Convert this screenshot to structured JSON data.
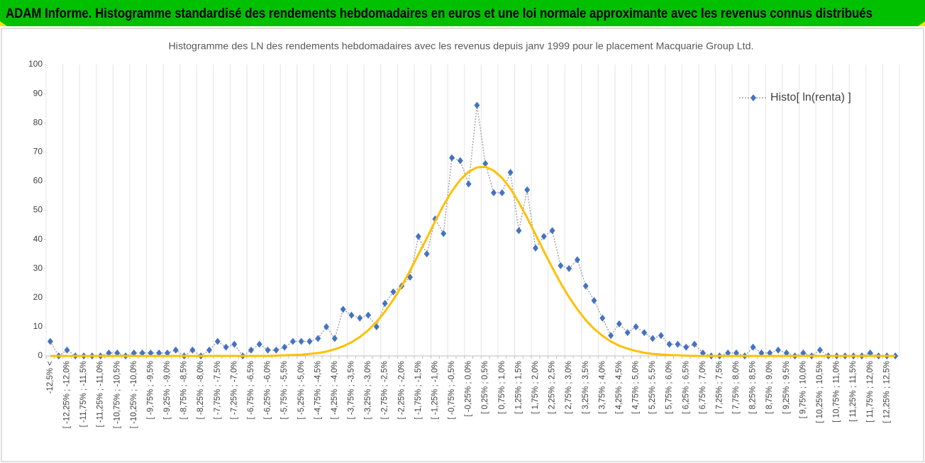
{
  "chart_data": {
    "type": "line",
    "header": "ADAM Informe. Histogramme standardisé des rendements hebdomadaires en euros et une loi normale approximante avec les revenus connus distribués",
    "title": "Histogramme des LN des rendements hebdomadaires avec les revenus depuis janv 1999 pour le placement Macquarie Group Ltd.",
    "categories": [
      "-12,5% <",
      null,
      "[ -12,25% ; -12,0%",
      null,
      "[ -11,75% ; -11,5%",
      null,
      "[ -11,25% ; -11,0%",
      null,
      "[ -10,75% ; -10,5%",
      null,
      "[ -10,25% ; -10,0%",
      null,
      "[ -9,75% ; -9,5%",
      null,
      "[ -9,25% ; -9,0%",
      null,
      "[ -8,75% ; -8,5%",
      null,
      "[ -8,25% ; -8,0%",
      null,
      "[ -7,75% ; -7,5%",
      null,
      "[ -7,25% ; -7,0%",
      null,
      "[ -6,75% ; -6,5%",
      null,
      "[ -6,25% ; -6,0%",
      null,
      "[ -5,75% ; -5,5%",
      null,
      "[ -5,25% ; -5,0%",
      null,
      "[ -4,75% ; -4,5%",
      null,
      "[ -4,25% ; -4,0%",
      null,
      "[ -3,75% ; -3,5%",
      null,
      "[ -3,25% ; -3,0%",
      null,
      "[ -2,75% ; -2,5%",
      null,
      "[ -2,25% ; -2,0%",
      null,
      "[ -1,75% ; -1,5%",
      null,
      "[ -1,25% ; -1,0%",
      null,
      "[ -0,75% ; -0,5%",
      null,
      "[ -0,25% ; 0,0%",
      null,
      "[ 0,25% ; 0,5%",
      null,
      "[ 0,75% ; 1,0%",
      null,
      "[ 1,25% ; 1,5%",
      null,
      "[ 1,75% ; 2,0%",
      null,
      "[ 2,25% ; 2,5%",
      null,
      "[ 2,75% ; 3,0%",
      null,
      "[ 3,25% ; 3,5%",
      null,
      "[ 3,75% ; 4,0%",
      null,
      "[ 4,25% ; 4,5%",
      null,
      "[ 4,75% ; 5,0%",
      null,
      "[ 5,25% ; 5,5%",
      null,
      "[ 5,75% ; 6,0%",
      null,
      "[ 6,25% ; 6,5%",
      null,
      "[ 6,75% ; 7,0%",
      null,
      "[ 7,25% ; 7,5%",
      null,
      "[ 7,75% ; 8,0%",
      null,
      "[ 8,25% ; 8,5%",
      null,
      "[ 8,75% ; 9,0%",
      null,
      "[ 9,25% ; 9,5%",
      null,
      "[ 9,75% ; 10,0%",
      null,
      "[ 10,25% ; 10,5%",
      null,
      "[ 10,75% ; 11,0%",
      null,
      "[ 11,25% ; 11,5%",
      null,
      "[ 11,75% ; 12,0%",
      null,
      "[ 12,25% ; 12,5%",
      null
    ],
    "series": [
      {
        "name": "Histo[ ln(renta) ]",
        "color": "#4472c4",
        "line_color": "#a5a5a5",
        "values": [
          5,
          0,
          2,
          0,
          0,
          0,
          0,
          1,
          1,
          0,
          1,
          1,
          1,
          1,
          1,
          2,
          0,
          2,
          0,
          2,
          5,
          3,
          4,
          0,
          2,
          4,
          2,
          2,
          3,
          5,
          5,
          5,
          6,
          10,
          6,
          16,
          14,
          13,
          14,
          10,
          18,
          22,
          24,
          27,
          41,
          35,
          47,
          42,
          68,
          67,
          59,
          86,
          66,
          56,
          56,
          63,
          43,
          57,
          37,
          41,
          43,
          31,
          30,
          33,
          24,
          19,
          13,
          7,
          11,
          8,
          10,
          8,
          6,
          7,
          4,
          4,
          3,
          4,
          1,
          0,
          0,
          1,
          1,
          0,
          3,
          1,
          1,
          2,
          1,
          0,
          1,
          0,
          2,
          0,
          0,
          0,
          0,
          0,
          1,
          0,
          0,
          0
        ]
      },
      {
        "color": "#ffc000",
        "values": [
          0,
          0,
          0,
          0,
          0,
          0,
          0,
          0,
          0,
          0,
          0,
          0,
          0,
          0,
          0,
          0,
          0,
          0,
          0,
          0,
          0,
          0,
          0,
          0,
          0,
          0,
          0,
          0.1,
          0.2,
          0.3,
          0.4,
          0.7,
          1.0,
          1.5,
          2.3,
          3.3,
          4.7,
          6.5,
          8.8,
          11.7,
          15.2,
          19.3,
          24.0,
          29.2,
          34.8,
          40.4,
          46.2,
          51.7,
          56.5,
          60.4,
          63.2,
          64.7,
          64.9,
          63.6,
          61.1,
          57.4,
          52.7,
          47.4,
          41.7,
          35.9,
          30.3,
          25.0,
          20.2,
          16.0,
          12.3,
          9.3,
          6.9,
          5.0,
          3.5,
          2.5,
          1.7,
          1.1,
          0.7,
          0.5,
          0.3,
          0.2,
          0.1,
          0,
          0,
          0,
          0,
          0,
          0,
          0,
          0,
          0,
          0,
          0,
          0,
          0,
          0,
          0,
          0,
          0,
          0,
          0,
          0,
          0,
          0,
          0,
          0,
          0
        ]
      }
    ],
    "ylim": [
      0,
      100
    ],
    "yticks": [
      0,
      10,
      20,
      30,
      40,
      50,
      60,
      70,
      80,
      90,
      100
    ],
    "legend": "upper right"
  }
}
